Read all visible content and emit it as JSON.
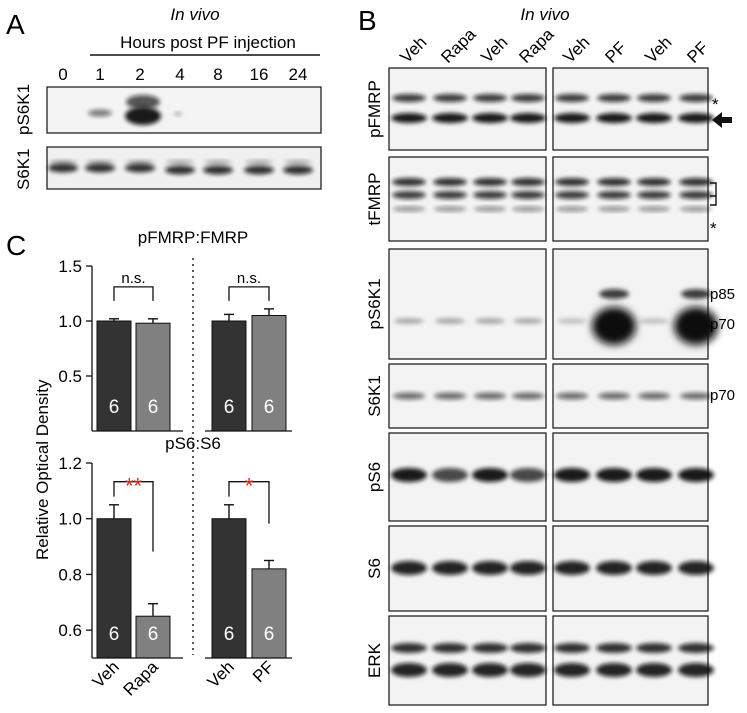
{
  "panel_a": {
    "letter": "A",
    "condition": "In vivo",
    "axis_title": "Hours post PF injection",
    "time_labels": [
      "0",
      "1",
      "2",
      "4",
      "8",
      "16",
      "24"
    ],
    "blot_labels": [
      "pS6K1",
      "S6K1"
    ]
  },
  "panel_b": {
    "letter": "B",
    "condition": "In vivo",
    "lanes_left": [
      "Veh",
      "Rapa",
      "Veh",
      "Rapa"
    ],
    "lanes_right": [
      "Veh",
      "PF",
      "Veh",
      "PF"
    ],
    "blots": [
      "pFMRP",
      "tFMRP",
      "pS6K1",
      "S6K1",
      "pS6",
      "S6",
      "ERK"
    ],
    "annotations": {
      "asterisk": "*",
      "p85": "p85",
      "p70": "p70",
      "arrow": "left-arrow"
    }
  },
  "panel_c": {
    "letter": "C",
    "ylabel": "Relative Optical Density",
    "xcategories": [
      "Veh",
      "Rapa",
      "Veh",
      "PF"
    ],
    "top": {
      "title": "pFMRP:FMRP",
      "ticks": [
        "1.5",
        "1.0",
        "0.5"
      ],
      "sig": [
        "n.s.",
        "n.s."
      ]
    },
    "bottom": {
      "title": "pS6:S6",
      "ticks": [
        "1.2",
        "1.0",
        "0.8",
        "0.6"
      ],
      "sig": [
        "**",
        "*"
      ]
    },
    "n_label": "6",
    "colors": {
      "dark": "#333333",
      "light": "#808080",
      "sig": "#e0201b"
    }
  },
  "chart_data": [
    {
      "type": "bar",
      "title": "pFMRP:FMRP",
      "categories": [
        "Veh",
        "Rapa",
        "Veh",
        "PF"
      ],
      "values": [
        1.0,
        0.98,
        1.0,
        1.05
      ],
      "errors": [
        0.02,
        0.04,
        0.06,
        0.06
      ],
      "n": [
        6,
        6,
        6,
        6
      ],
      "ylabel": "Relative Optical Density",
      "ylim": [
        0,
        1.5
      ],
      "significance": [
        "n.s.",
        "n.s."
      ]
    },
    {
      "type": "bar",
      "title": "pS6:S6",
      "categories": [
        "Veh",
        "Rapa",
        "Veh",
        "PF"
      ],
      "values": [
        1.0,
        0.65,
        1.0,
        0.82
      ],
      "errors": [
        0.05,
        0.045,
        0.05,
        0.03
      ],
      "n": [
        6,
        6,
        6,
        6
      ],
      "ylabel": "Relative Optical Density",
      "ylim": [
        0.5,
        1.2
      ],
      "significance": [
        "**",
        "*"
      ]
    }
  ]
}
